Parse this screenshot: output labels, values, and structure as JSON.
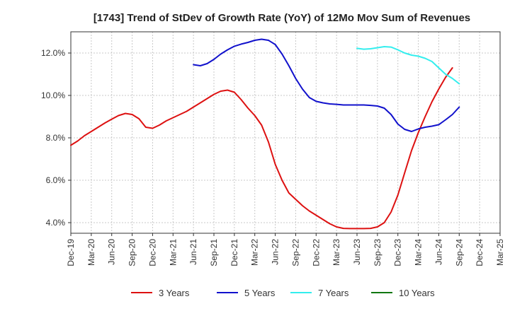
{
  "chart_data": {
    "type": "line",
    "title": "[1743]  Trend of StDev of Growth Rate (YoY) of 12Mo Mov Sum of Revenues",
    "xlabel": "",
    "ylabel": "",
    "ylim": [
      3.5,
      13.0
    ],
    "yticks": [
      4.0,
      6.0,
      8.0,
      10.0,
      12.0
    ],
    "ytick_labels": [
      "4.0%",
      "6.0%",
      "8.0%",
      "10.0%",
      "12.0%"
    ],
    "x_start": "Dec-19",
    "x_end": "Mar-25",
    "xtick_labels": [
      "Dec-19",
      "Mar-20",
      "Jun-20",
      "Sep-20",
      "Dec-20",
      "Mar-21",
      "Jun-21",
      "Sep-21",
      "Dec-21",
      "Mar-22",
      "Jun-22",
      "Sep-22",
      "Dec-22",
      "Mar-23",
      "Jun-23",
      "Sep-23",
      "Dec-23",
      "Mar-24",
      "Jun-24",
      "Sep-24",
      "Dec-24",
      "Mar-25"
    ],
    "grid": true,
    "legend_position": "bottom",
    "series": [
      {
        "name": "3 Years",
        "color": "#dd1111",
        "points": [
          [
            0,
            7.65
          ],
          [
            1,
            7.85
          ],
          [
            2,
            8.1
          ],
          [
            3,
            8.3
          ],
          [
            4,
            8.5
          ],
          [
            5,
            8.7
          ],
          [
            6,
            8.88
          ],
          [
            7,
            9.05
          ],
          [
            8,
            9.15
          ],
          [
            9,
            9.1
          ],
          [
            10,
            8.9
          ],
          [
            11,
            8.5
          ],
          [
            12,
            8.45
          ],
          [
            13,
            8.6
          ],
          [
            14,
            8.8
          ],
          [
            15,
            8.95
          ],
          [
            16,
            9.1
          ],
          [
            17,
            9.25
          ],
          [
            18,
            9.45
          ],
          [
            19,
            9.65
          ],
          [
            20,
            9.85
          ],
          [
            21,
            10.05
          ],
          [
            22,
            10.2
          ],
          [
            23,
            10.25
          ],
          [
            24,
            10.15
          ],
          [
            25,
            9.8
          ],
          [
            26,
            9.4
          ],
          [
            27,
            9.05
          ],
          [
            28,
            8.6
          ],
          [
            29,
            7.8
          ],
          [
            30,
            6.75
          ],
          [
            31,
            6.0
          ],
          [
            32,
            5.4
          ],
          [
            33,
            5.1
          ],
          [
            34,
            4.8
          ],
          [
            35,
            4.55
          ],
          [
            36,
            4.35
          ],
          [
            37,
            4.15
          ],
          [
            38,
            3.95
          ],
          [
            39,
            3.8
          ],
          [
            40,
            3.73
          ],
          [
            41,
            3.72
          ],
          [
            42,
            3.72
          ],
          [
            43,
            3.72
          ],
          [
            44,
            3.73
          ],
          [
            45,
            3.8
          ],
          [
            46,
            4.0
          ],
          [
            47,
            4.5
          ],
          [
            48,
            5.3
          ],
          [
            49,
            6.35
          ],
          [
            50,
            7.4
          ],
          [
            51,
            8.25
          ],
          [
            52,
            9.0
          ],
          [
            53,
            9.7
          ],
          [
            54,
            10.3
          ],
          [
            55,
            10.85
          ],
          [
            56,
            11.3
          ]
        ]
      },
      {
        "name": "5 Years",
        "color": "#1111cc",
        "points": [
          [
            18,
            11.45
          ],
          [
            19,
            11.4
          ],
          [
            20,
            11.5
          ],
          [
            21,
            11.7
          ],
          [
            22,
            11.95
          ],
          [
            23,
            12.15
          ],
          [
            24,
            12.32
          ],
          [
            25,
            12.42
          ],
          [
            26,
            12.5
          ],
          [
            27,
            12.6
          ],
          [
            28,
            12.65
          ],
          [
            29,
            12.6
          ],
          [
            30,
            12.4
          ],
          [
            31,
            11.95
          ],
          [
            32,
            11.4
          ],
          [
            33,
            10.8
          ],
          [
            34,
            10.3
          ],
          [
            35,
            9.9
          ],
          [
            36,
            9.72
          ],
          [
            37,
            9.65
          ],
          [
            38,
            9.6
          ],
          [
            39,
            9.58
          ],
          [
            40,
            9.55
          ],
          [
            41,
            9.55
          ],
          [
            42,
            9.55
          ],
          [
            43,
            9.55
          ],
          [
            44,
            9.53
          ],
          [
            45,
            9.5
          ],
          [
            46,
            9.4
          ],
          [
            47,
            9.1
          ],
          [
            48,
            8.65
          ],
          [
            49,
            8.4
          ],
          [
            50,
            8.3
          ],
          [
            51,
            8.42
          ],
          [
            52,
            8.5
          ],
          [
            53,
            8.55
          ],
          [
            54,
            8.62
          ],
          [
            55,
            8.85
          ],
          [
            56,
            9.1
          ],
          [
            57,
            9.45
          ]
        ]
      },
      {
        "name": "7 Years",
        "color": "#33eeee",
        "points": [
          [
            42,
            12.22
          ],
          [
            43,
            12.18
          ],
          [
            44,
            12.2
          ],
          [
            45,
            12.25
          ],
          [
            46,
            12.3
          ],
          [
            47,
            12.28
          ],
          [
            48,
            12.15
          ],
          [
            49,
            12.0
          ],
          [
            50,
            11.9
          ],
          [
            51,
            11.85
          ],
          [
            52,
            11.75
          ],
          [
            53,
            11.6
          ],
          [
            54,
            11.3
          ],
          [
            55,
            11.0
          ],
          [
            56,
            10.8
          ],
          [
            57,
            10.55
          ]
        ]
      },
      {
        "name": "10 Years",
        "color": "#117711",
        "points": []
      }
    ]
  }
}
